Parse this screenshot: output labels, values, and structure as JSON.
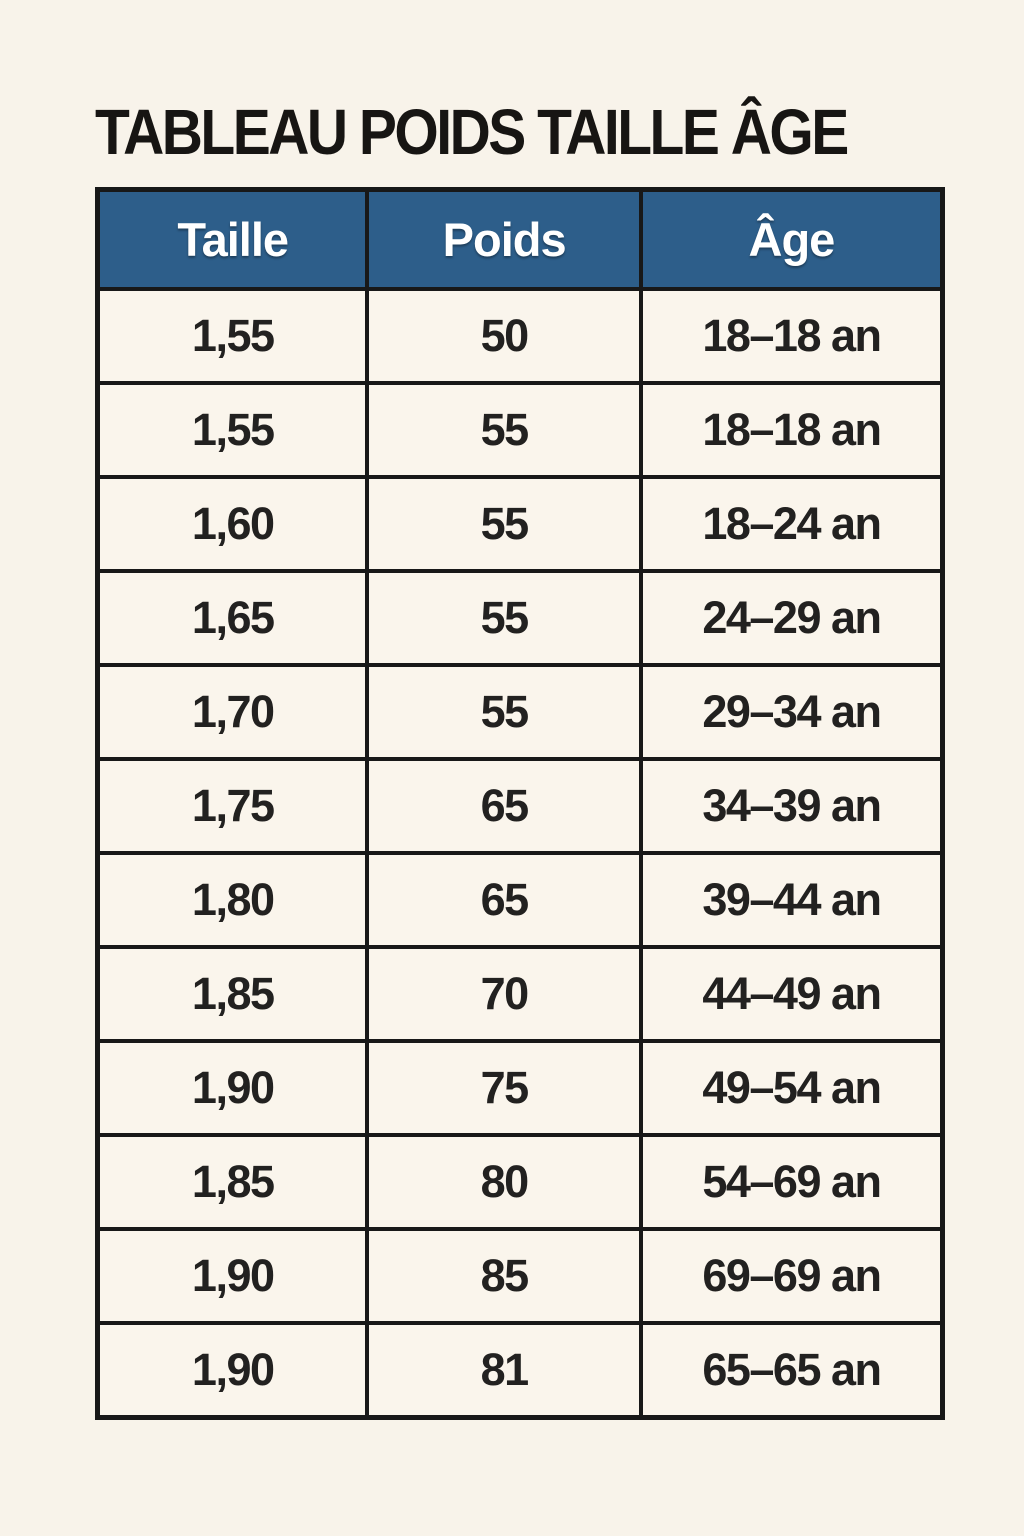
{
  "page": {
    "title": "TABLEAU POIDS TAILLE ÂGE",
    "background_color": "#f8f3ea"
  },
  "table": {
    "header_bg_color": "#2d5e8a",
    "header_text_color": "#ffffff",
    "grid_color": "#181818",
    "cell_bg_color": "#faf5ec",
    "cell_text_color": "#222120",
    "columns": [
      "Taille",
      "Poids",
      "Âge"
    ],
    "rows": [
      [
        "1,55",
        "50",
        "18–18 an"
      ],
      [
        "1,55",
        "55",
        "18–18 an"
      ],
      [
        "1,60",
        "55",
        "18–24 an"
      ],
      [
        "1,65",
        "55",
        "24–29 an"
      ],
      [
        "1,70",
        "55",
        "29–34 an"
      ],
      [
        "1,75",
        "65",
        "34–39 an"
      ],
      [
        "1,80",
        "65",
        "39–44 an"
      ],
      [
        "1,85",
        "70",
        "44–49 an"
      ],
      [
        "1,90",
        "75",
        "49–54 an"
      ],
      [
        "1,85",
        "80",
        "54–69 an"
      ],
      [
        "1,90",
        "85",
        "69–69 an"
      ],
      [
        "1,90",
        "81",
        "65–65 an"
      ]
    ]
  },
  "chart_data": {
    "type": "table",
    "title": "TABLEAU POIDS TAILLE ÂGE",
    "columns": [
      "Taille",
      "Poids",
      "Âge"
    ],
    "rows": [
      [
        "1,55",
        "50",
        "18–18 an"
      ],
      [
        "1,55",
        "55",
        "18–18 an"
      ],
      [
        "1,60",
        "55",
        "18–24 an"
      ],
      [
        "1,65",
        "55",
        "24–29 an"
      ],
      [
        "1,70",
        "55",
        "29–34 an"
      ],
      [
        "1,75",
        "65",
        "34–39 an"
      ],
      [
        "1,80",
        "65",
        "39–44 an"
      ],
      [
        "1,85",
        "70",
        "44–49 an"
      ],
      [
        "1,90",
        "75",
        "49–54 an"
      ],
      [
        "1,85",
        "80",
        "54–69 an"
      ],
      [
        "1,90",
        "85",
        "69–69 an"
      ],
      [
        "1,90",
        "81",
        "65–65 an"
      ]
    ]
  }
}
